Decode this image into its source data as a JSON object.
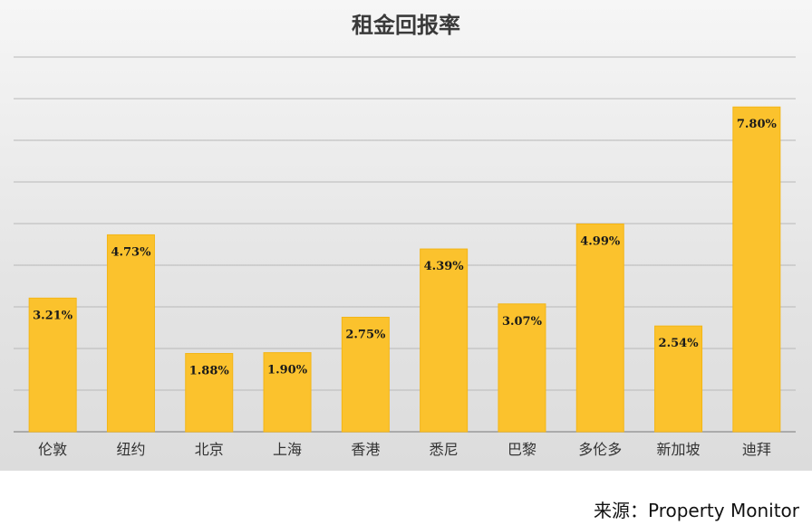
{
  "chart_data": {
    "type": "bar",
    "title": "租金回报率",
    "categories": [
      "伦敦",
      "纽约",
      "北京",
      "上海",
      "香港",
      "悉尼",
      "巴黎",
      "多伦多",
      "新加坡",
      "迪拜"
    ],
    "values": [
      3.21,
      4.73,
      1.88,
      1.9,
      2.75,
      4.39,
      3.07,
      4.99,
      2.54,
      7.8
    ],
    "data_labels": [
      "3.21%",
      "4.73%",
      "1.88%",
      "1.90%",
      "2.75%",
      "4.39%",
      "3.07%",
      "4.99%",
      "2.54%",
      "7.80%"
    ],
    "ylim": [
      0,
      9
    ],
    "grid": true,
    "bar_color": "#fbc22d",
    "gridline_color": "#b8b8b8"
  },
  "footer": {
    "source_label": "来源：",
    "source_name": "Property Monitor"
  }
}
